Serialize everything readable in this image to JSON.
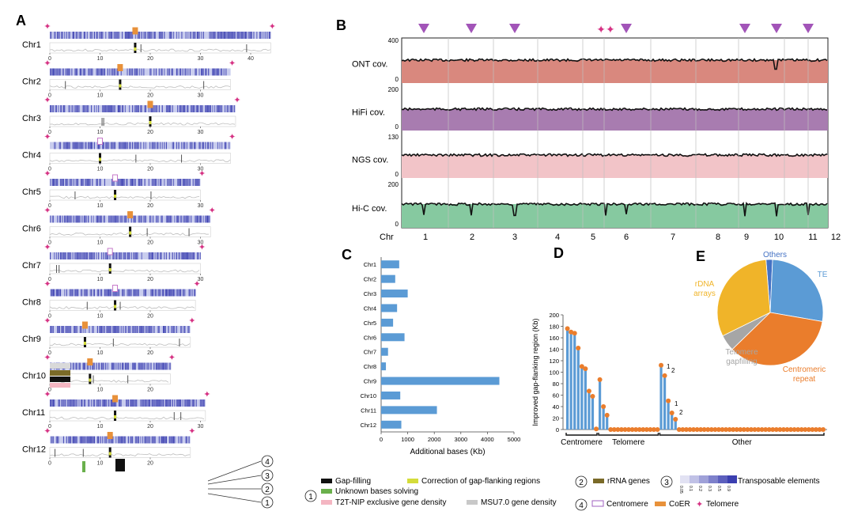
{
  "colors": {
    "blue_dark": "#3b3fb0",
    "blue_light": "#c9cdee",
    "pink": "#d63384",
    "coer": "#e8913a",
    "orange": "#ea7d2c",
    "bar_blue": "#5b9bd5",
    "ont": "#d9887e",
    "hifi": "#a87cb0",
    "ngs": "#f2c4c8",
    "hic": "#86c9a0",
    "triangle": "#a254b8",
    "rrna": "#7a6a28",
    "yellow": "#d4dc3a",
    "green": "#6ab04c",
    "pie_others": "#4472c4",
    "pie_te": "#5b9bd5",
    "pie_centro": "#ea7d2c",
    "pie_telo": "#a6a6a6",
    "pie_rdna": "#f0b429"
  },
  "panel_a": {
    "label": "A",
    "chromosomes": [
      {
        "name": "Chr1",
        "length": 44,
        "ticks": [
          "0",
          "10",
          "20",
          "30",
          "40"
        ],
        "centromere": 17,
        "coer": true
      },
      {
        "name": "Chr2",
        "length": 36,
        "ticks": [
          "0",
          "10",
          "20",
          "30"
        ],
        "centromere": 14,
        "coer": true
      },
      {
        "name": "Chr3",
        "length": 37,
        "ticks": [
          "0",
          "10",
          "20",
          "30"
        ],
        "centromere": 20,
        "coer": true
      },
      {
        "name": "Chr4",
        "length": 36,
        "ticks": [
          "0",
          "10",
          "20",
          "30"
        ],
        "centromere": 10,
        "coer": false
      },
      {
        "name": "Chr5",
        "length": 30,
        "ticks": [
          "0",
          "10",
          "20",
          "30"
        ],
        "centromere": 13,
        "coer": false
      },
      {
        "name": "Chr6",
        "length": 32,
        "ticks": [
          "0",
          "10",
          "20",
          "30"
        ],
        "centromere": 16,
        "coer": true
      },
      {
        "name": "Chr7",
        "length": 30,
        "ticks": [
          "0",
          "10",
          "20",
          "30"
        ],
        "centromere": 12,
        "coer": false
      },
      {
        "name": "Chr8",
        "length": 29,
        "ticks": [
          "0",
          "10",
          "20"
        ],
        "centromere": 13,
        "coer": false
      },
      {
        "name": "Chr9",
        "length": 28,
        "ticks": [
          "0",
          "10",
          "20"
        ],
        "centromere": 7,
        "coer": true
      },
      {
        "name": "Chr10",
        "length": 24,
        "ticks": [
          "0",
          "10",
          "20"
        ],
        "centromere": 8,
        "coer": true
      },
      {
        "name": "Chr11",
        "length": 31,
        "ticks": [
          "0",
          "10",
          "20",
          "30"
        ],
        "centromere": 13,
        "coer": true
      },
      {
        "name": "Chr12",
        "length": 28,
        "ticks": [
          "0",
          "10",
          "20"
        ],
        "centromere": 12,
        "coer": true
      }
    ],
    "track_markers": [
      "④",
      "③",
      "②",
      "①"
    ]
  },
  "panel_b": {
    "label": "B",
    "tracks": [
      {
        "name": "ONT cov.",
        "max": "400",
        "min": "0"
      },
      {
        "name": "HiFi cov.",
        "max": "200",
        "min": "0"
      },
      {
        "name": "NGS cov.",
        "max": "130",
        "min": "0"
      },
      {
        "name": "Hi-C cov.",
        "max": "200",
        "min": "0"
      }
    ],
    "chr_prefix": "Chr",
    "chr_labels": [
      "1",
      "2",
      "3",
      "4",
      "5",
      "6",
      "7",
      "8",
      "9",
      "10",
      "11",
      "12"
    ]
  },
  "panel_c": {
    "label": "C",
    "xlabel": "Additional bases (Kb)",
    "x_ticks": [
      "0",
      "1000",
      "2000",
      "3000",
      "4000",
      "5000"
    ]
  },
  "panel_d": {
    "label": "D",
    "ylabel": "Improved gap-flanking region (Kb)",
    "y_ticks": [
      "0",
      "20",
      "40",
      "60",
      "80",
      "100",
      "120",
      "140",
      "160",
      "180",
      "200"
    ],
    "groups": [
      "Centromere",
      "Telomere",
      "Other"
    ],
    "annotations": [
      "1",
      "2",
      "1",
      "2"
    ]
  },
  "panel_e": {
    "label": "E",
    "slices": [
      {
        "name": "Others",
        "value": 2
      },
      {
        "name": "TE",
        "value": 27
      },
      {
        "name": "Centromeric\nrepeat",
        "value": 35
      },
      {
        "name": "Telomere\ngapfilling",
        "value": 5
      },
      {
        "name": "rDNA\narrays",
        "value": 31
      }
    ]
  },
  "legend": {
    "gap_filling": "Gap-filling",
    "correction": "Correction of gap-flanking regions",
    "unknown": "Unknown bases solving",
    "t2t": "T2T-NIP exclusive gene density",
    "msu": "MSU7.0 gene density",
    "rrna": "rRNA genes",
    "te": "Transposable elements",
    "te_scale": [
      "0.05",
      "0.1",
      "0.2",
      "0.3",
      "0.5",
      "0.9"
    ],
    "centromere": "Centromere",
    "coer": "CoER",
    "telomere": "Telomere",
    "num1": "①",
    "num2": "②",
    "num3": "③",
    "num4": "④"
  },
  "chart_data": [
    {
      "type": "bar",
      "title": "",
      "xlabel": "Additional bases (Kb)",
      "ylabel": "",
      "orientation": "horizontal",
      "categories": [
        "Chr1",
        "Chr2",
        "Chr3",
        "Chr4",
        "Chr5",
        "Chr6",
        "Chr7",
        "Chr8",
        "Chr9",
        "Chr10",
        "Chr11",
        "Chr12"
      ],
      "values": [
        680,
        530,
        1000,
        600,
        450,
        880,
        260,
        180,
        4450,
        720,
        2100,
        760
      ],
      "xlim": [
        0,
        5000
      ]
    },
    {
      "type": "bar",
      "title": "",
      "xlabel": "",
      "ylabel": "Improved gap-flanking region (Kb)",
      "ylim": [
        0,
        200
      ],
      "groups": [
        {
          "name": "Centromere",
          "values": [
            176,
            170,
            168,
            142,
            110,
            106,
            67,
            58,
            1
          ]
        },
        {
          "name": "Telomere",
          "values": [
            87,
            40,
            25,
            0,
            0,
            0,
            0,
            0,
            0,
            0,
            0,
            0,
            0,
            0,
            0,
            0,
            0
          ]
        },
        {
          "name": "Other",
          "values": [
            112,
            94,
            50,
            29,
            18,
            0,
            0,
            0,
            0,
            0,
            0,
            0,
            0,
            0,
            0,
            0,
            0,
            0,
            0,
            0,
            0,
            0,
            0,
            0,
            0,
            0,
            0,
            0,
            0,
            0,
            0,
            0,
            0,
            0,
            0,
            0,
            0,
            0,
            0,
            0,
            0,
            0,
            0,
            0,
            0,
            0
          ]
        }
      ]
    },
    {
      "type": "pie",
      "title": "",
      "labels": [
        "Others",
        "TE",
        "Centromeric repeat",
        "Telomere gapfilling",
        "rDNA arrays"
      ],
      "values": [
        2,
        27,
        35,
        5,
        31
      ]
    }
  ]
}
